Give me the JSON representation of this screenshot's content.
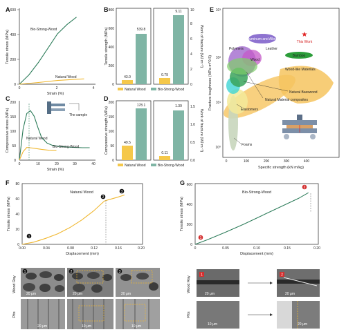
{
  "panel_labels": {
    "A": "A",
    "B": "B",
    "C": "C",
    "D": "D",
    "E": "E",
    "F": "F",
    "G": "G"
  },
  "colors": {
    "bio": "#2e7d5b",
    "natural": "#f0b72f",
    "bio_bar": "#7fb5a5",
    "nat_bar": "#f5c84a"
  },
  "panelA": {
    "ylabel": "Tensile stress (MPa)",
    "xlabel": "Strain (%)",
    "yticks": [
      "0",
      "200",
      "400",
      "600"
    ],
    "xticks": [
      "0",
      "2",
      "4"
    ],
    "bio": "Bio-Strong-Wood",
    "nat": "Natural Wood"
  },
  "panelB": {
    "ylabel": "Tensile strength (MPa)",
    "y2label": "Work of fracture (MJ m⁻³)",
    "yticks": [
      "0",
      "200",
      "400",
      "600",
      "800"
    ],
    "y2ticks": [
      "0",
      "2",
      "4",
      "6",
      "8",
      "10"
    ],
    "v1": "43.0",
    "v2": "539.8",
    "v3": "0.79",
    "v4": "9.11",
    "leg_nat": "Natural Wood",
    "leg_bio": "Bio-Strong-Wood"
  },
  "panelC": {
    "ylabel": "Compressive stress (MPa)",
    "xlabel": "Strain (%)",
    "yticks": [
      "0",
      "50",
      "100",
      "150",
      "200"
    ],
    "xticks": [
      "0",
      "10",
      "20",
      "30",
      "40"
    ],
    "nat": "Natural Wood",
    "bio": "Bio-Strong-Wood",
    "sample": "The sample"
  },
  "panelD": {
    "ylabel": "Compressive strength (MPa)",
    "y2label": "Work of fracture (MJ m⁻³)",
    "yticks": [
      "0",
      "50",
      "100",
      "150",
      "200"
    ],
    "y2ticks": [
      "0.0",
      "0.5",
      "1.0",
      "1.5"
    ],
    "v1": "49.5",
    "v2": "178.1",
    "v3": "0.11",
    "v4": "1.39",
    "leg_nat": "Natural Wood",
    "leg_bio": "Bio-Strong-Wood"
  },
  "panelE": {
    "ylabel": "Fracture toughness (MPa m^0.5)",
    "xlabel": "Specific strength (kN m/kg)",
    "yticks": [
      "10⁰",
      "10¹",
      "10²",
      "10³"
    ],
    "xticks": [
      "0",
      "100",
      "200",
      "300",
      "400"
    ],
    "labels": {
      "alu": "Aluminum and Alloys",
      "work": "This Work",
      "poly": "Polymers",
      "leather": "Leather",
      "wood": "Wood",
      "bamboo": "Bamboo",
      "woodlike": "Wood-like Materials",
      "basswood": "Natural Basswood",
      "composites": "Natural Material composites",
      "elast": "Elastomers",
      "foams": "Foams"
    }
  },
  "panelF": {
    "title": "Natural Wood",
    "ylabel": "Tensile stress (MPa)",
    "xlabel": "Displacement (mm)",
    "yticks": [
      "0",
      "20",
      "40",
      "60",
      "80"
    ],
    "xticks": [
      "0.00",
      "0.04",
      "0.08",
      "0.12",
      "0.16",
      "0.20"
    ],
    "m1": "1",
    "m2": "2",
    "m3": "3"
  },
  "panelG": {
    "title": "Bio-Strong-Wood",
    "ylabel": "Tensile stress (MPa)",
    "xlabel": "Displacement (mm)",
    "yticks": [
      "0",
      "200",
      "400",
      "600"
    ],
    "xticks": [
      "0",
      "0.05",
      "0.10",
      "0.15",
      "0.20"
    ],
    "m1": "1",
    "m2": "2"
  },
  "sem": {
    "wood_ray": "Wood Ray",
    "pits": "Pits",
    "s20": "20 μm",
    "s10": "10 μm",
    "n1": "1",
    "n2": "2",
    "n3": "3"
  },
  "chart_data": [
    {
      "type": "line",
      "panel": "A",
      "xlabel": "Strain (%)",
      "ylabel": "Tensile stress (MPa)",
      "xlim": [
        0,
        4
      ],
      "ylim": [
        0,
        600
      ],
      "series": [
        {
          "name": "Bio-Strong-Wood",
          "x": [
            0,
            0.5,
            1.0,
            1.5,
            2.0,
            2.5,
            3.0
          ],
          "y": [
            0,
            75,
            175,
            290,
            405,
            480,
            540
          ]
        },
        {
          "name": "Natural Wood",
          "x": [
            0,
            1,
            2,
            3,
            3.4
          ],
          "y": [
            0,
            14,
            30,
            40,
            43
          ]
        }
      ]
    },
    {
      "type": "bar",
      "panel": "B",
      "categories": [
        "Natural Wood",
        "Bio-Strong-Wood"
      ],
      "series": [
        {
          "name": "Tensile strength (MPa)",
          "values": [
            43.0,
            539.8
          ]
        },
        {
          "name": "Work of fracture (MJ m-3)",
          "values": [
            0.79,
            9.11
          ]
        }
      ]
    },
    {
      "type": "line",
      "panel": "C",
      "xlabel": "Strain (%)",
      "ylabel": "Compressive stress (MPa)",
      "xlim": [
        0,
        40
      ],
      "ylim": [
        0,
        200
      ],
      "series": [
        {
          "name": "Bio-Strong-Wood",
          "x": [
            0,
            2,
            4,
            6,
            8,
            10,
            12,
            15,
            18,
            22,
            26,
            30,
            34,
            38
          ],
          "y": [
            0,
            110,
            165,
            175,
            155,
            115,
            80,
            60,
            52,
            48,
            46,
            45,
            44,
            44
          ]
        },
        {
          "name": "Natural Wood",
          "x": [
            0,
            2,
            4,
            8,
            12,
            16,
            20
          ],
          "y": [
            0,
            30,
            45,
            42,
            38,
            35,
            34
          ]
        }
      ]
    },
    {
      "type": "bar",
      "panel": "D",
      "categories": [
        "Natural Wood",
        "Bio-Strong-Wood"
      ],
      "series": [
        {
          "name": "Compressive strength (MPa)",
          "values": [
            49.5,
            178.1
          ]
        },
        {
          "name": "Work of fracture (MJ m-3)",
          "values": [
            0.11,
            1.39
          ]
        }
      ]
    },
    {
      "type": "line",
      "panel": "F",
      "xlabel": "Displacement (mm)",
      "ylabel": "Tensile stress (MPa)",
      "xlim": [
        0,
        0.2
      ],
      "ylim": [
        0,
        80
      ],
      "series": [
        {
          "name": "Natural Wood",
          "x": [
            0,
            0.02,
            0.04,
            0.06,
            0.08,
            0.1,
            0.12,
            0.138,
            0.142,
            0.16,
            0.172
          ],
          "y": [
            0,
            3,
            8,
            14,
            22,
            32,
            44,
            57,
            58,
            62,
            65
          ]
        }
      ]
    },
    {
      "type": "line",
      "panel": "G",
      "xlabel": "Displacement (mm)",
      "ylabel": "Tensile stress (MPa)",
      "xlim": [
        0,
        0.2
      ],
      "ylim": [
        0,
        600
      ],
      "series": [
        {
          "name": "Bio-Strong-Wood",
          "x": [
            0,
            0.02,
            0.05,
            0.08,
            0.11,
            0.14,
            0.17,
            0.186
          ],
          "y": [
            0,
            45,
            120,
            200,
            285,
            370,
            455,
            510
          ]
        }
      ]
    }
  ]
}
